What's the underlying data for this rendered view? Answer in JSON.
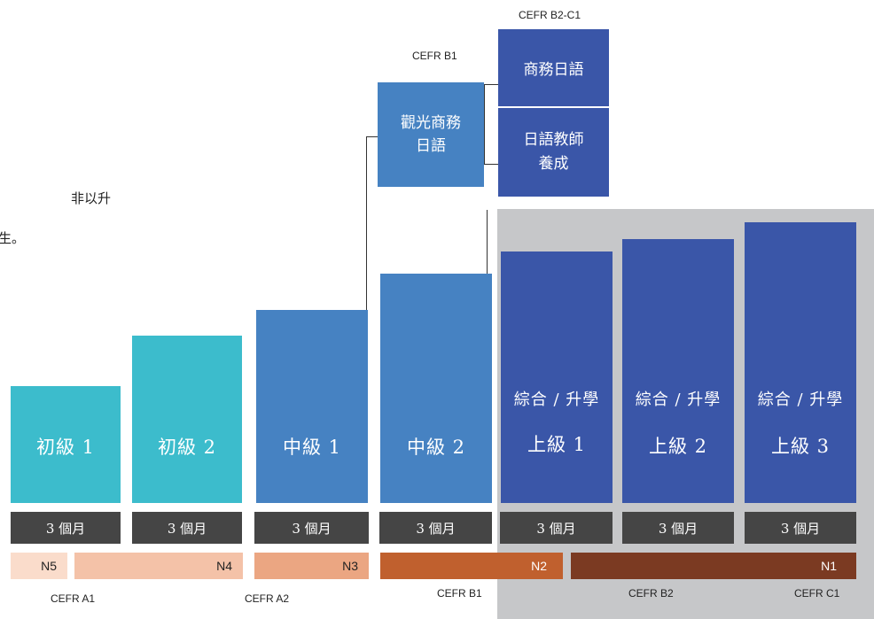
{
  "intro_fragments": [
    "非以升",
    "生。"
  ],
  "levels": [
    {
      "name": "初級 1",
      "duration": "3 個月"
    },
    {
      "name": "初級 2",
      "duration": "3 個月"
    },
    {
      "name": "中級 1",
      "duration": "3 個月"
    },
    {
      "name": "中級 2",
      "duration": "3 個月"
    },
    {
      "track": "綜合 / 升學",
      "name": "上級 1",
      "duration": "3 個月"
    },
    {
      "track": "綜合 / 升學",
      "name": "上級 2",
      "duration": "3 個月"
    },
    {
      "track": "綜合 / 升學",
      "name": "上級 3",
      "duration": "3 個月"
    }
  ],
  "specialty": {
    "tourism": {
      "cefr": "CEFR B1",
      "line1": "觀光商務",
      "line2": "日語"
    },
    "business": {
      "cefr": "CEFR B2-C1",
      "label": "商務日語"
    },
    "teacher": {
      "line1": "日語教師",
      "line2": "養成"
    }
  },
  "jlpt": [
    "N5",
    "N4",
    "N3",
    "N2",
    "N1"
  ],
  "cefr_bottom": [
    "CEFR A1",
    "CEFR A2",
    "CEFR B1",
    "CEFR B2",
    "CEFR C1"
  ],
  "colors": {
    "beginner": "#3cbccc",
    "intermediate": "#4682c2",
    "advanced": "#3a56a8",
    "advanced_bg": "#c6c7c9",
    "duration": "#454545",
    "n5": "#fadccb",
    "n4": "#f4c2a8",
    "n3": "#eba682",
    "n2": "#c0602e",
    "n1": "#7b3a22"
  }
}
